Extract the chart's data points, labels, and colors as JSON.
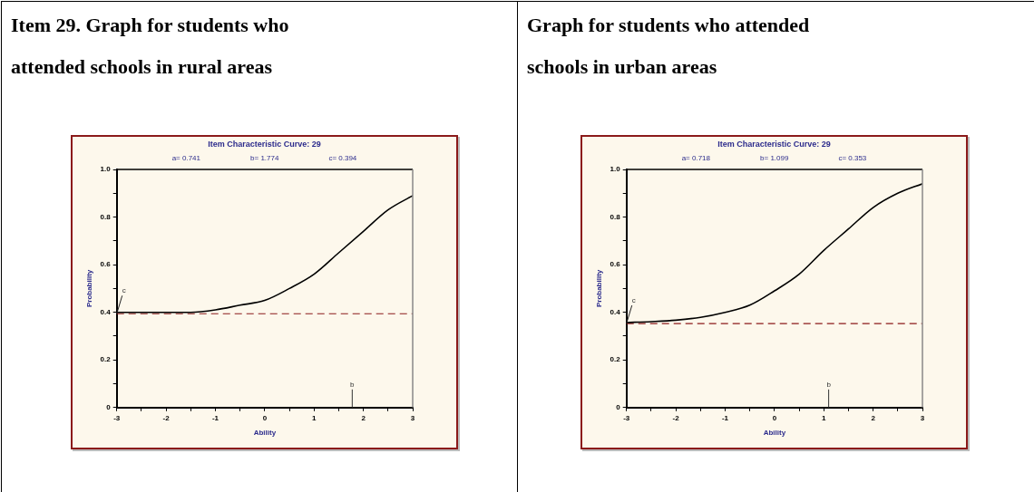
{
  "chart_data": [
    {
      "type": "line",
      "title": "Item 29.  Graph for students who attended schools in rural areas",
      "subtitle": "Item Characteristic Curve: 29",
      "xlabel": "Ability",
      "ylabel": "Probability",
      "x": [
        -3,
        -2.5,
        -2,
        -1.5,
        -1,
        -0.5,
        0,
        0.5,
        1,
        1.5,
        2,
        2.5,
        3
      ],
      "series": [
        {
          "color": "#000000",
          "values": [
            0.4,
            0.4,
            0.4,
            0.4,
            0.41,
            0.43,
            0.45,
            0.5,
            0.56,
            0.65,
            0.74,
            0.83,
            0.89
          ]
        }
      ],
      "xlim": [
        -3,
        3
      ],
      "ylim": [
        0,
        1
      ],
      "xticks": [
        -3,
        {
          "value": -2.5,
          "label": null
        },
        -2,
        {
          "value": -1.5,
          "label": null
        },
        -1,
        {
          "value": -0.5,
          "label": null
        },
        0,
        {
          "value": 0.5,
          "label": null
        },
        1,
        {
          "value": 1.5,
          "label": null
        },
        2,
        {
          "value": 2.5,
          "label": null
        },
        3
      ],
      "yticks": [
        0,
        {
          "value": 0.1,
          "label": null
        },
        0.2,
        {
          "value": 0.3,
          "label": null
        },
        0.4,
        {
          "value": 0.5,
          "label": null
        },
        0.6,
        {
          "value": 0.7,
          "label": null
        },
        0.8,
        {
          "value": 0.9,
          "label": null
        },
        {
          "value": 1,
          "label": "1.0"
        }
      ],
      "ref_lines": [
        {
          "axis": "y",
          "value": 0.394,
          "color": "#8b1a1a",
          "line_style": "dashed"
        },
        {
          "axis": "x",
          "value": 1.774,
          "label": "b",
          "color": "#333333"
        }
      ],
      "annotations": [
        "a=  0.741",
        "b=  1.774",
        "c=  0.394",
        {
          "text": "c",
          "x": -3,
          "y": 0.394
        }
      ],
      "grid": false,
      "legend": false,
      "marker": "none",
      "line_style": "solid"
    },
    {
      "type": "line",
      "title": "Graph for students who attended schools in urban areas",
      "subtitle": "Item Characteristic Curve: 29",
      "xlabel": "Ability",
      "ylabel": "Probability",
      "x": [
        -3,
        -2.5,
        -2,
        -1.5,
        -1,
        -0.5,
        0,
        0.5,
        1,
        1.5,
        2,
        2.5,
        3
      ],
      "series": [
        {
          "color": "#000000",
          "values": [
            0.357,
            0.361,
            0.367,
            0.379,
            0.4,
            0.43,
            0.49,
            0.56,
            0.66,
            0.75,
            0.84,
            0.9,
            0.94
          ]
        }
      ],
      "xlim": [
        -3,
        3
      ],
      "ylim": [
        0,
        1
      ],
      "xticks": [
        -3,
        {
          "value": -2.5,
          "label": null
        },
        -2,
        {
          "value": -1.5,
          "label": null
        },
        -1,
        {
          "value": -0.5,
          "label": null
        },
        0,
        {
          "value": 0.5,
          "label": null
        },
        1,
        {
          "value": 1.5,
          "label": null
        },
        2,
        {
          "value": 2.5,
          "label": null
        },
        3
      ],
      "yticks": [
        0,
        {
          "value": 0.1,
          "label": null
        },
        0.2,
        {
          "value": 0.3,
          "label": null
        },
        0.4,
        {
          "value": 0.5,
          "label": null
        },
        0.6,
        {
          "value": 0.7,
          "label": null
        },
        0.8,
        {
          "value": 0.9,
          "label": null
        },
        {
          "value": 1,
          "label": "1.0"
        }
      ],
      "ref_lines": [
        {
          "axis": "y",
          "value": 0.353,
          "color": "#8b1a1a",
          "line_style": "dashed"
        },
        {
          "axis": "x",
          "value": 1.099,
          "label": "b",
          "color": "#333333"
        }
      ],
      "annotations": [
        "a=  0.718",
        "b=  1.099",
        "c=  0.353",
        {
          "text": "c",
          "x": -3,
          "y": 0.353
        }
      ],
      "grid": false,
      "legend": false,
      "marker": "none",
      "line_style": "solid"
    }
  ]
}
